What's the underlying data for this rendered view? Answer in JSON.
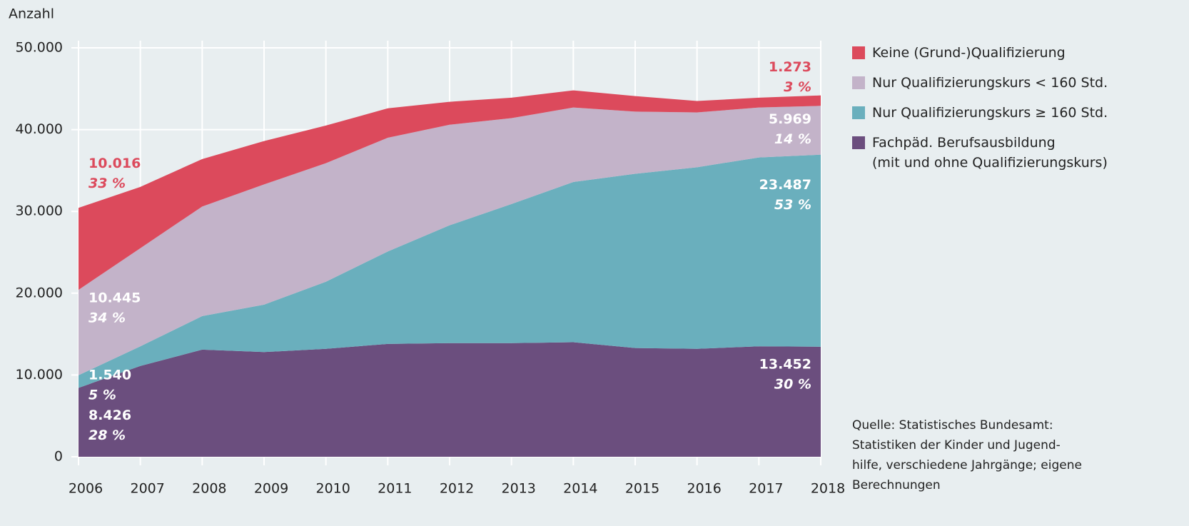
{
  "chart_data": {
    "type": "stacked_area",
    "y_label": "Anzahl",
    "categories": [
      "2006",
      "2007",
      "2008",
      "2009",
      "2010",
      "2011",
      "2012",
      "2013",
      "2014",
      "2015",
      "2016",
      "2017",
      "2018"
    ],
    "series": [
      {
        "name": "Fachpäd. Berufsausbildung\n(mit und ohne Qualifizierungskurs)",
        "color": "#6b4e7e",
        "values": [
          8426,
          11100,
          13100,
          12800,
          13200,
          13800,
          13900,
          13900,
          14000,
          13300,
          13200,
          13500,
          13452
        ],
        "value_labels": [
          "8.426",
          null,
          null,
          null,
          null,
          null,
          null,
          null,
          null,
          null,
          null,
          null,
          "13.452"
        ],
        "percent_labels": [
          "28 %",
          null,
          null,
          null,
          null,
          null,
          null,
          null,
          null,
          null,
          null,
          null,
          "30 %"
        ]
      },
      {
        "name": "Nur Qualifizierungskurs ≥ 160 Std.",
        "color": "#6aafbd",
        "values": [
          1540,
          2400,
          4100,
          5800,
          8200,
          11300,
          14400,
          17000,
          19600,
          21300,
          22200,
          23100,
          23487
        ],
        "value_labels": [
          "1.540",
          null,
          null,
          null,
          null,
          null,
          null,
          null,
          null,
          null,
          null,
          null,
          "23.487"
        ],
        "percent_labels": [
          "5 %",
          null,
          null,
          null,
          null,
          null,
          null,
          null,
          null,
          null,
          null,
          null,
          "53 %"
        ]
      },
      {
        "name": "Nur Qualifizierungskurs < 160 Std.",
        "color": "#c3b3c9",
        "values": [
          10445,
          12000,
          13400,
          14700,
          14500,
          13900,
          12300,
          10500,
          9100,
          7600,
          6700,
          6100,
          5969
        ],
        "value_labels": [
          "10.445",
          null,
          null,
          null,
          null,
          null,
          null,
          null,
          null,
          null,
          null,
          null,
          "5.969"
        ],
        "percent_labels": [
          "34 %",
          null,
          null,
          null,
          null,
          null,
          null,
          null,
          null,
          null,
          null,
          null,
          "14 %"
        ]
      },
      {
        "name": "Keine (Grund-)Qualifizierung",
        "color": "#dc4a5c",
        "values": [
          10016,
          7500,
          5800,
          5300,
          4600,
          3600,
          2800,
          2500,
          2100,
          1900,
          1400,
          1200,
          1273
        ],
        "value_labels": [
          "10.016",
          null,
          null,
          null,
          null,
          null,
          null,
          null,
          null,
          null,
          null,
          null,
          "1.273"
        ],
        "percent_labels": [
          "33 %",
          null,
          null,
          null,
          null,
          null,
          null,
          null,
          null,
          null,
          null,
          null,
          "3 %"
        ]
      }
    ],
    "ylim": [
      0,
      50000
    ],
    "yticks": [
      0,
      {
        "value": 10000,
        "label": "10.000"
      },
      {
        "value": 20000,
        "label": "20.000"
      },
      {
        "value": 30000,
        "label": "30.000"
      },
      {
        "value": 40000,
        "label": "40.000"
      },
      {
        "value": 50000,
        "label": "50.000"
      }
    ],
    "grid": true,
    "source": "Quelle: Statistisches Bundesamt:\nStatistiken der Kinder und Jugend-\nhilfe, verschiedene Jahrgänge; eigene\nBerechnungen"
  }
}
